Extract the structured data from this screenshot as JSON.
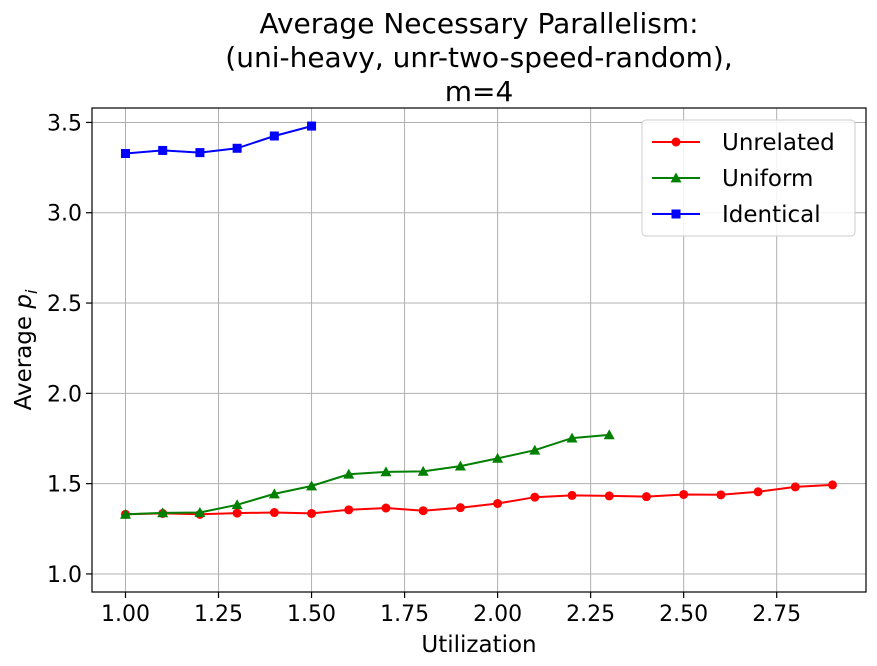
{
  "chart_data": {
    "type": "line",
    "title_lines": [
      "Average Necessary Parallelism:",
      "(uni-heavy, unr-two-speed-random),",
      "m=4"
    ],
    "xlabel": "Utilization",
    "ylabel_prefix": "Average ",
    "ylabel_var": "p",
    "ylabel_sub": "i",
    "xlim": [
      0.91,
      2.99
    ],
    "ylim": [
      0.9,
      3.58
    ],
    "xticks": [
      1.0,
      1.25,
      1.5,
      1.75,
      2.0,
      2.25,
      2.5,
      2.75
    ],
    "xtick_labels": [
      "1.00",
      "1.25",
      "1.50",
      "1.75",
      "2.00",
      "2.25",
      "2.50",
      "2.75"
    ],
    "yticks": [
      1.0,
      1.5,
      2.0,
      2.5,
      3.0,
      3.5
    ],
    "ytick_labels": [
      "1.0",
      "1.5",
      "2.0",
      "2.5",
      "3.0",
      "3.5"
    ],
    "grid": true,
    "legend_position": "top-right",
    "series": [
      {
        "name": "Unrelated",
        "color": "#ff0000",
        "marker": "circle",
        "x": [
          1.0,
          1.1,
          1.2,
          1.3,
          1.4,
          1.5,
          1.6,
          1.7,
          1.8,
          1.9,
          2.0,
          2.1,
          2.2,
          2.3,
          2.4,
          2.5,
          2.6,
          2.7,
          2.8,
          2.9
        ],
        "y": [
          1.33,
          1.335,
          1.33,
          1.337,
          1.34,
          1.335,
          1.355,
          1.365,
          1.35,
          1.367,
          1.39,
          1.425,
          1.435,
          1.432,
          1.428,
          1.44,
          1.438,
          1.455,
          1.482,
          1.493
        ]
      },
      {
        "name": "Uniform",
        "color": "#008000",
        "marker": "triangle",
        "x": [
          1.0,
          1.1,
          1.2,
          1.3,
          1.4,
          1.5,
          1.6,
          1.7,
          1.8,
          1.9,
          2.0,
          2.1,
          2.2,
          2.3
        ],
        "y": [
          1.33,
          1.338,
          1.34,
          1.383,
          1.443,
          1.487,
          1.552,
          1.565,
          1.568,
          1.597,
          1.64,
          1.685,
          1.752,
          1.77
        ]
      },
      {
        "name": "Identical",
        "color": "#0000ff",
        "marker": "square",
        "x": [
          1.0,
          1.1,
          1.2,
          1.3,
          1.4,
          1.5
        ],
        "y": [
          3.328,
          3.345,
          3.333,
          3.357,
          3.425,
          3.48
        ]
      }
    ]
  }
}
